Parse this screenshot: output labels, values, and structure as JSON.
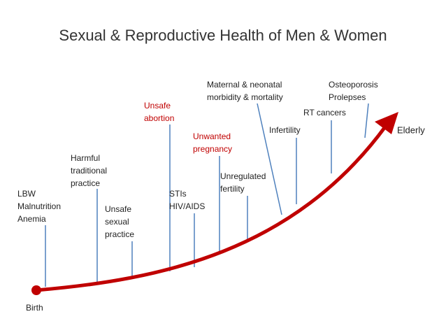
{
  "title": "Sexual & Reproductive Health of Men & Women",
  "start_label": "Birth",
  "end_label": "Elderly",
  "nodes": [
    {
      "lines": [
        "LBW",
        "Malnutrition",
        "Anemia"
      ]
    },
    {
      "lines": [
        "Harmful",
        "traditional",
        "practice"
      ]
    },
    {
      "lines": [
        "Unsafe",
        "sexual",
        "practice"
      ]
    },
    {
      "lines": [
        "Unsafe",
        "abortion"
      ]
    },
    {
      "lines": [
        "STIs",
        "HIV/AIDS"
      ]
    },
    {
      "lines": [
        "Unwanted",
        "pregnancy"
      ]
    },
    {
      "lines": [
        "Unregulated",
        "fertility"
      ]
    },
    {
      "lines": [
        "Maternal & neonatal",
        "morbidity & mortality"
      ]
    },
    {
      "lines": [
        "Infertility"
      ]
    },
    {
      "lines": [
        "RT cancers"
      ]
    },
    {
      "lines": [
        "Osteoporosis",
        "Prolepses"
      ]
    }
  ]
}
